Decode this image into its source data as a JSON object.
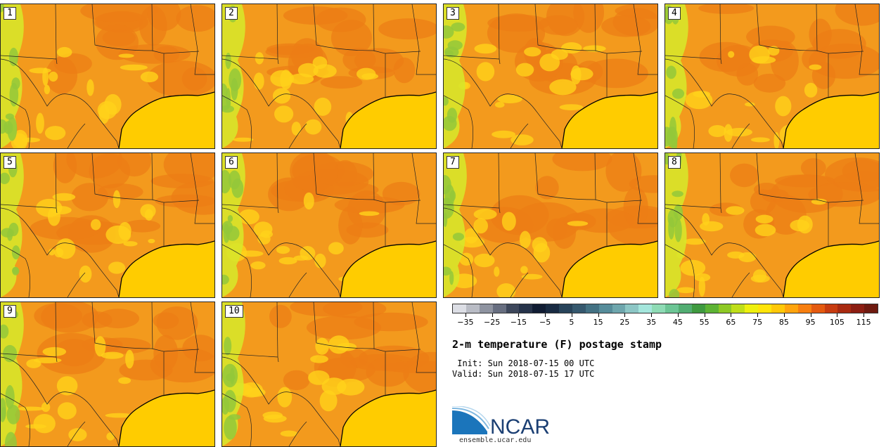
{
  "panels": [
    {
      "label": "1"
    },
    {
      "label": "2"
    },
    {
      "label": "3"
    },
    {
      "label": "4"
    },
    {
      "label": "5"
    },
    {
      "label": "6"
    },
    {
      "label": "7"
    },
    {
      "label": "8"
    },
    {
      "label": "9"
    },
    {
      "label": "10"
    }
  ],
  "colorbar": {
    "colors": [
      "#dcdee5",
      "#b9bcc5",
      "#8e93a0",
      "#676e80",
      "#3d475b",
      "#26334a",
      "#101c33",
      "#182a42",
      "#27435a",
      "#35586e",
      "#437183",
      "#568c9a",
      "#6ea6ad",
      "#8cc6c5",
      "#a4e6dc",
      "#8edbb5",
      "#6cc595",
      "#52ad72",
      "#3f9a40",
      "#5db334",
      "#8ec925",
      "#bfde19",
      "#eef00e",
      "#ffe40a",
      "#ffc808",
      "#ffa40d",
      "#f77f10",
      "#e45a0f",
      "#c73c10",
      "#a82a10",
      "#8c1e12",
      "#6e1a10"
    ],
    "tick_labels": [
      "−35",
      "−25",
      "−15",
      "−5",
      "5",
      "15",
      "25",
      "35",
      "45",
      "55",
      "65",
      "75",
      "85",
      "95",
      "105",
      "115"
    ],
    "tick_values": [
      -35,
      -25,
      -15,
      -5,
      5,
      15,
      25,
      35,
      45,
      55,
      65,
      75,
      85,
      95,
      105,
      115
    ],
    "range": [
      -40,
      120
    ]
  },
  "title": "2-m temperature (F) postage stamp",
  "init_text": " Init: Sun 2018-07-15 00 UTC",
  "valid_text": "Valid: Sun 2018-07-15 17 UTC",
  "logo": {
    "name": "NCAR",
    "url": "ensemble.ucar.edu"
  }
}
